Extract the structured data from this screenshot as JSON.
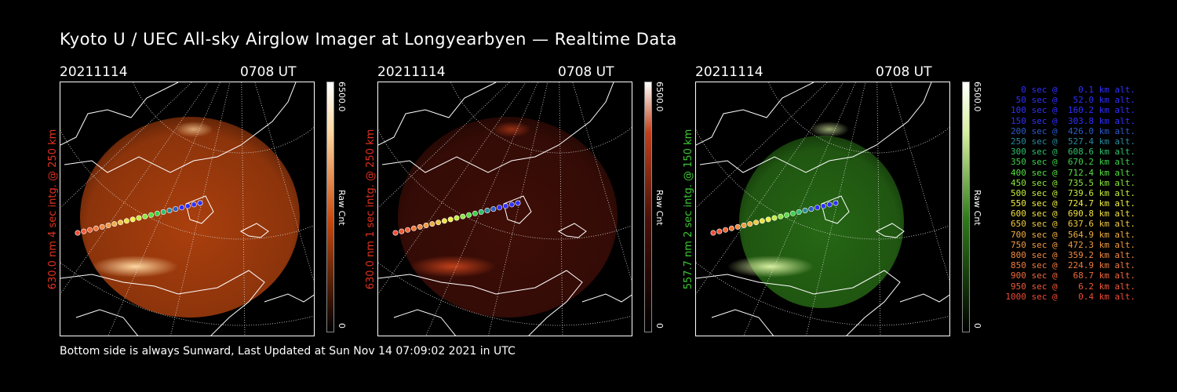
{
  "title": "Kyoto U / UEC All-sky Airglow Imager at Longyearbyen — Realtime Data",
  "footer": "Bottom side is always Sunward, Last Updated at Sun Nov 14 07:09:02 2021 in UTC",
  "panels": [
    {
      "date": "20211114",
      "time": "0708 UT",
      "label": "630.0 nm 4 sec intg. @ 250 km",
      "label_color": "#e0321e",
      "cbar_max": "6500.0",
      "cbar_min": "0",
      "cbar_unit": "Raw Cnt",
      "glow_color": "#c84a10",
      "bright_color": "#ffd7a0"
    },
    {
      "date": "20211114",
      "time": "0708 UT",
      "label": "630.0 nm 1 sec intg. @ 250 km",
      "label_color": "#e0321e",
      "cbar_max": "6500.0",
      "cbar_min": "0",
      "cbar_unit": "Raw Cnt",
      "glow_color": "#4a1008",
      "bright_color": "#c0401a"
    },
    {
      "date": "20211114",
      "time": "0708 UT",
      "label": "557.7 nm 2 sec intg. @ 150 km",
      "label_color": "#3cc832",
      "cbar_max": "6500.0",
      "cbar_min": "0",
      "cbar_unit": "Raw Cnt",
      "glow_color": "#2d7a18",
      "bright_color": "#d8f0a0"
    }
  ],
  "legend": [
    {
      "text": "   0 sec @    0.1 km alt.",
      "color": "#3030ff"
    },
    {
      "text": "  50 sec @   52.0 km alt.",
      "color": "#3030ff"
    },
    {
      "text": " 100 sec @  160.2 km alt.",
      "color": "#3030ff"
    },
    {
      "text": " 150 sec @  303.8 km alt.",
      "color": "#3030ff"
    },
    {
      "text": " 200 sec @  426.0 km alt.",
      "color": "#2c5bc8"
    },
    {
      "text": " 250 sec @  527.4 km alt.",
      "color": "#2a8a9e"
    },
    {
      "text": " 300 sec @  608.6 km alt.",
      "color": "#2fbf6c"
    },
    {
      "text": " 350 sec @  670.2 km alt.",
      "color": "#3dd04a"
    },
    {
      "text": " 400 sec @  712.4 km alt.",
      "color": "#55e040"
    },
    {
      "text": " 450 sec @  735.5 km alt.",
      "color": "#8ae83c"
    },
    {
      "text": " 500 sec @  739.6 km alt.",
      "color": "#c4ee3a"
    },
    {
      "text": " 550 sec @  724.7 km alt.",
      "color": "#f0f040"
    },
    {
      "text": " 600 sec @  690.8 km alt.",
      "color": "#f0e040"
    },
    {
      "text": " 650 sec @  637.6 km alt.",
      "color": "#f0c840"
    },
    {
      "text": " 700 sec @  564.9 km alt.",
      "color": "#f0ae40"
    },
    {
      "text": " 750 sec @  472.3 km alt.",
      "color": "#f09a40"
    },
    {
      "text": " 800 sec @  359.2 km alt.",
      "color": "#f08a40"
    },
    {
      "text": " 850 sec @  224.9 km alt.",
      "color": "#f07a3c"
    },
    {
      "text": " 900 sec @   68.7 km alt.",
      "color": "#f0683a"
    },
    {
      "text": " 950 sec @    6.2 km alt.",
      "color": "#f05a38"
    },
    {
      "text": "1000 sec @    0.4 km alt.",
      "color": "#f04a34"
    }
  ]
}
